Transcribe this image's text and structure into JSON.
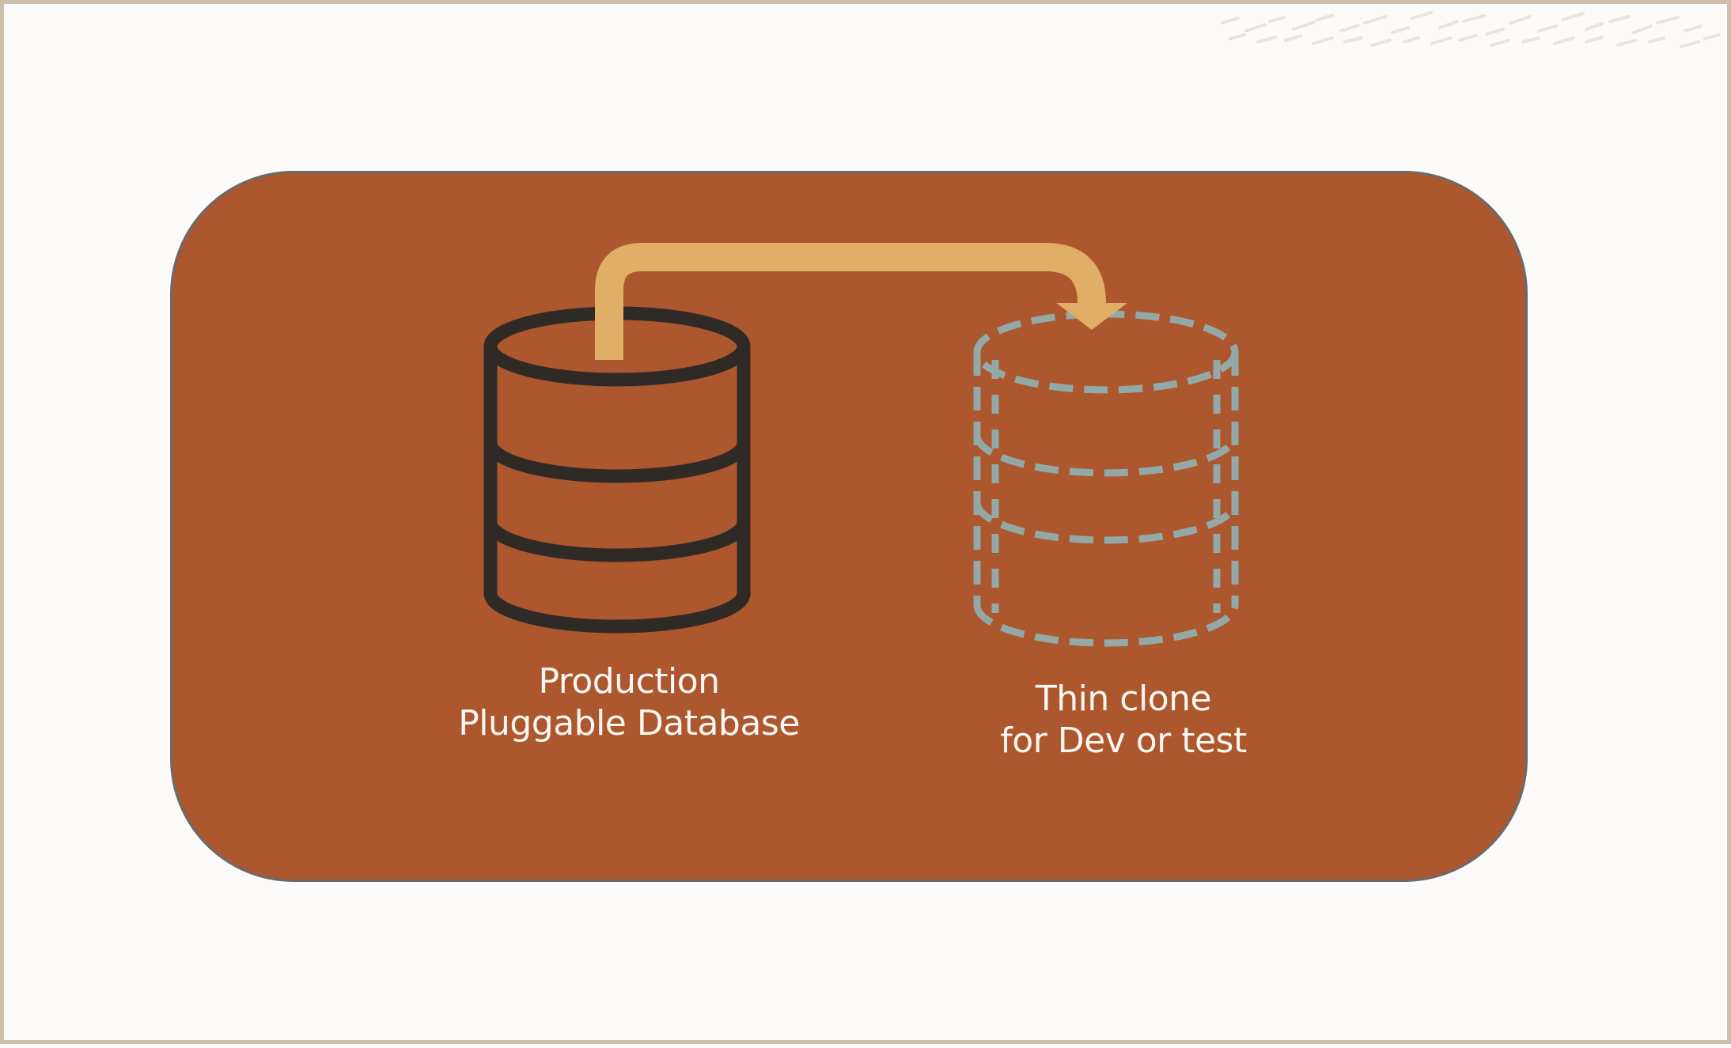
{
  "diagram": {
    "source": {
      "line1": "Production",
      "line2": "Pluggable Database",
      "icon": "database-icon"
    },
    "target": {
      "line1": "Thin clone",
      "line2": "for Dev or test",
      "icon": "dashed-database-icon"
    },
    "arrow": {
      "icon": "clone-arrow-icon"
    }
  },
  "colors": {
    "background": "#fcfbf9",
    "frame_border": "#cdbfae",
    "panel": "#ac572d",
    "panel_border": "#6a6a6a",
    "database_stroke": "#2f2a26",
    "clone_stroke": "#92a9a7",
    "arrow": "#e0ae66",
    "label_text": "#fbf7f2"
  }
}
